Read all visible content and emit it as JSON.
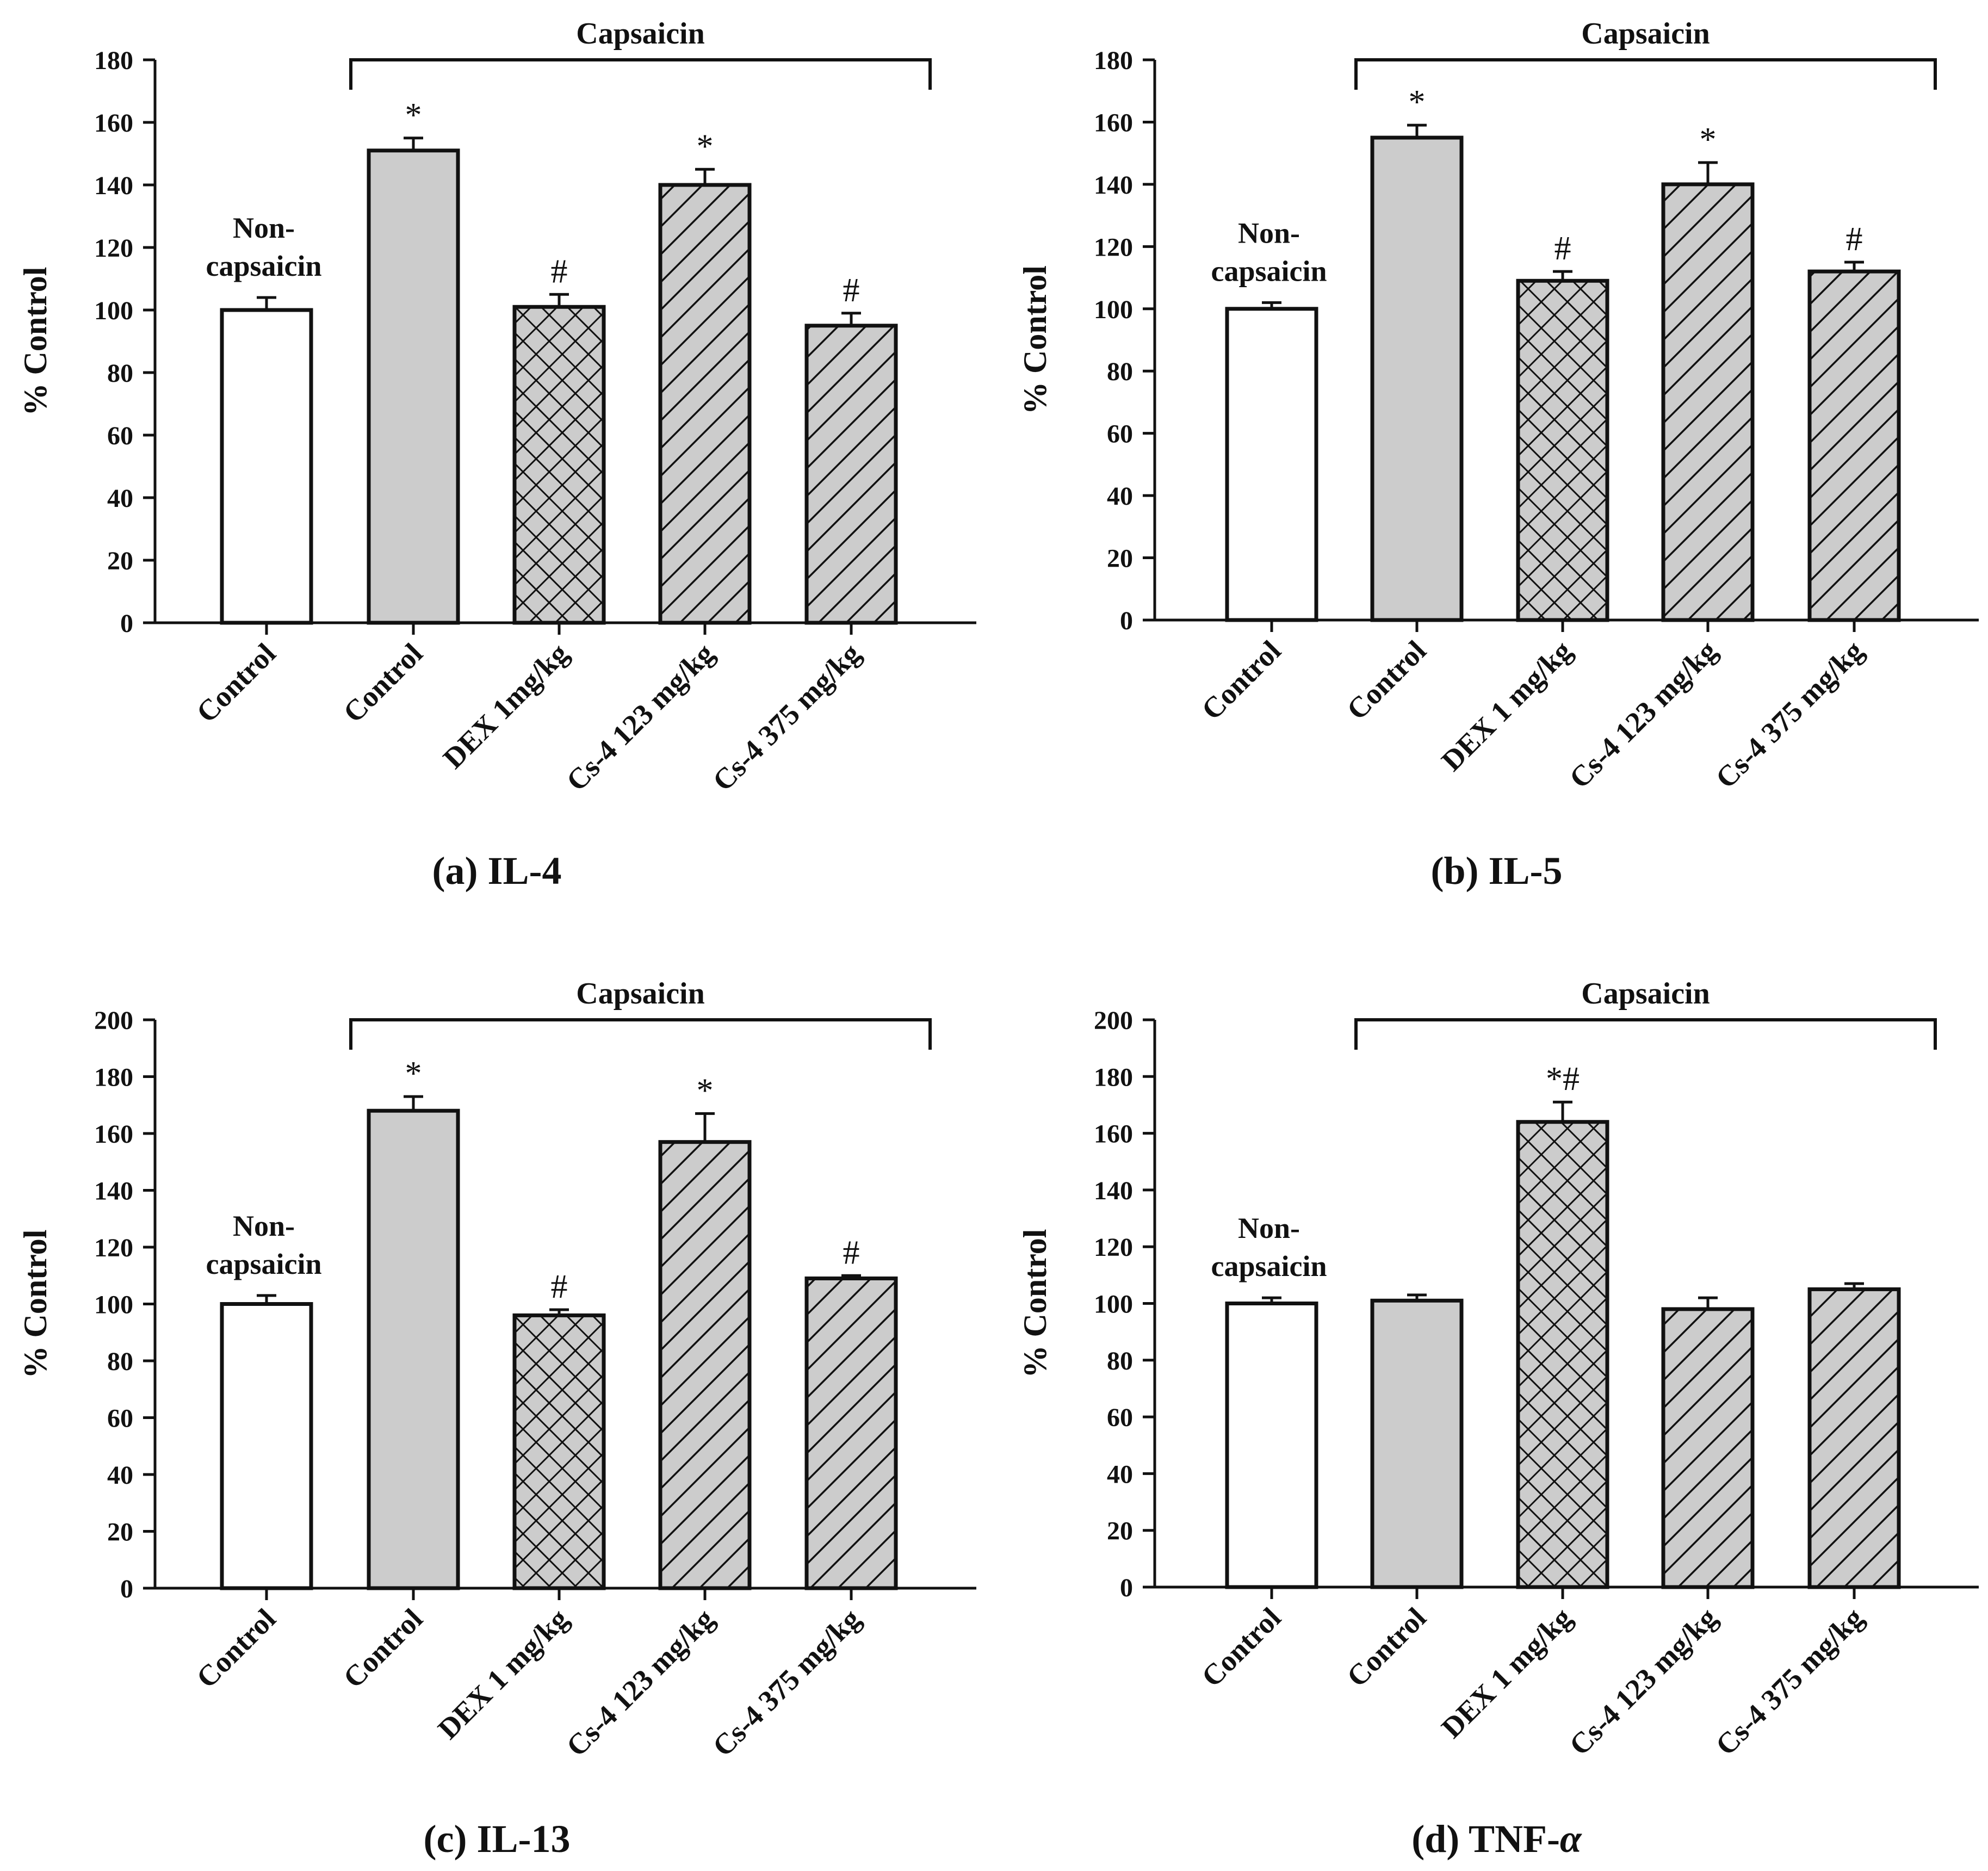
{
  "figure": {
    "panels": [
      {
        "caption_letter": "(a)",
        "caption_name": "IL-4",
        "chart_data": {
          "type": "bar",
          "title": "IL-4",
          "ylabel": "% Control",
          "xlabel": "",
          "ylim": [
            0,
            180
          ],
          "yticks": [
            "0",
            "20",
            "40",
            "60",
            "80",
            "100",
            "120",
            "140",
            "160",
            "180"
          ],
          "bracket_label": "Capsaicin",
          "group_label_line1": "Non-",
          "group_label_line2": "capsaicin",
          "categories": [
            "Control",
            "Control",
            "DEX 1mg/kg",
            "Cs-4 123 mg/kg",
            "Cs-4 375 mg/kg"
          ],
          "values": [
            100,
            151,
            101,
            140,
            95
          ],
          "errors": [
            4,
            4,
            4,
            5,
            4
          ],
          "annotations": [
            "",
            "*",
            "#",
            "*",
            "#"
          ]
        }
      },
      {
        "caption_letter": "(b)",
        "caption_name": "IL-5",
        "chart_data": {
          "type": "bar",
          "title": "IL-5",
          "ylabel": "% Control",
          "xlabel": "",
          "ylim": [
            0,
            180
          ],
          "yticks": [
            "0",
            "20",
            "40",
            "60",
            "80",
            "100",
            "120",
            "140",
            "160",
            "180"
          ],
          "bracket_label": "Capsaicin",
          "group_label_line1": "Non-",
          "group_label_line2": "capsaicin",
          "categories": [
            "Control",
            "Control",
            "DEX 1 mg/kg",
            "Cs-4 123 mg/kg",
            "Cs-4 375 mg/kg"
          ],
          "values": [
            100,
            155,
            109,
            140,
            112
          ],
          "errors": [
            2,
            4,
            3,
            7,
            3
          ],
          "annotations": [
            "",
            "*",
            "#",
            "*",
            "#"
          ]
        }
      },
      {
        "caption_letter": "(c)",
        "caption_name": "IL-13",
        "chart_data": {
          "type": "bar",
          "title": "IL-13",
          "ylabel": "% Control",
          "xlabel": "",
          "ylim": [
            0,
            200
          ],
          "yticks": [
            "0",
            "20",
            "40",
            "60",
            "80",
            "100",
            "120",
            "140",
            "160",
            "180",
            "200"
          ],
          "bracket_label": "Capsaicin",
          "group_label_line1": "Non-",
          "group_label_line2": "capsaicin",
          "categories": [
            "Control",
            "Control",
            "DEX 1 mg/kg",
            "Cs-4 123 mg/kg",
            "Cs-4 375 mg/kg"
          ],
          "values": [
            100,
            168,
            96,
            157,
            109
          ],
          "errors": [
            3,
            5,
            2,
            10,
            1
          ],
          "annotations": [
            "",
            "*",
            "#",
            "*",
            "#"
          ]
        }
      },
      {
        "caption_letter": "(d)",
        "caption_name": "TNF-",
        "caption_greek": "α",
        "chart_data": {
          "type": "bar",
          "title": "TNF-α",
          "ylabel": "% Control",
          "xlabel": "",
          "ylim": [
            0,
            200
          ],
          "yticks": [
            "0",
            "20",
            "40",
            "60",
            "80",
            "100",
            "120",
            "140",
            "160",
            "180",
            "200"
          ],
          "bracket_label": "Capsaicin",
          "group_label_line1": "Non-",
          "group_label_line2": "capsaicin",
          "categories": [
            "Control",
            "Control",
            "DEX 1 mg/kg",
            "Cs-4 123 mg/kg",
            "Cs-4 375 mg/kg"
          ],
          "values": [
            100,
            101,
            164,
            98,
            105
          ],
          "errors": [
            2,
            2,
            7,
            4,
            2
          ],
          "annotations": [
            "",
            "",
            "*#",
            "",
            ""
          ]
        }
      }
    ],
    "bar_styles": [
      "white",
      "gray",
      "crosshatch",
      "diagonal",
      "diagonal"
    ],
    "colors": {
      "bar_fill_gray": "#cccccc",
      "bar_fill_white": "#ffffff",
      "ink": "#111111",
      "background": "#ffffff"
    }
  }
}
